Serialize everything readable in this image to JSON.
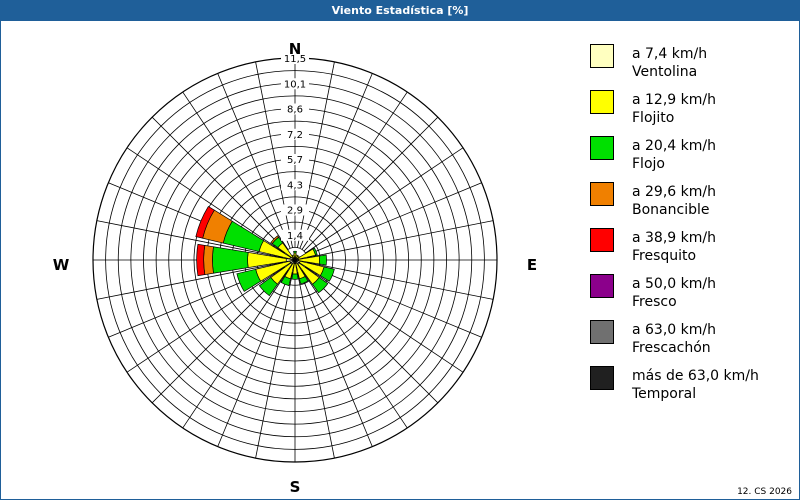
{
  "window": {
    "title": "Viento Estadística [%]"
  },
  "footer": {
    "text": "12. CS 2026"
  },
  "colors": {
    "title_bg": "#1f5f99",
    "bins": [
      "#ffffc0",
      "#ffff00",
      "#00e000",
      "#f08000",
      "#ff0000",
      "#8b008b",
      "#707070",
      "#202020"
    ]
  },
  "chart_data": {
    "type": "polar-bar",
    "title": "Viento Estadística [%]",
    "directions": [
      "N",
      "NNE",
      "NE",
      "ENE",
      "E",
      "ESE",
      "SE",
      "SSE",
      "S",
      "SSW",
      "SW",
      "WSW",
      "W",
      "WNW",
      "NW",
      "NNW"
    ],
    "cardinal_labels": {
      "N": "N",
      "E": "E",
      "S": "S",
      "W": "W"
    },
    "radial_ticks": [
      "1,4",
      "2,9",
      "4,3",
      "5,7",
      "7,2",
      "8,6",
      "10,1",
      "11,5"
    ],
    "rmax": 11.5,
    "stacking": "cumulative",
    "series": [
      {
        "name": "a 7,4 km/h Ventolina",
        "values": [
          0.1,
          0.1,
          0.1,
          0.2,
          0.2,
          0.3,
          0.3,
          0.2,
          0.2,
          0.2,
          0.3,
          0.3,
          0.5,
          0.3,
          0.2,
          0.1
        ]
      },
      {
        "name": "a 12,9 km/h Flojito",
        "values": [
          0.3,
          0.2,
          0.2,
          1.0,
          1.2,
          1.4,
          1.4,
          0.9,
          0.6,
          0.9,
          1.4,
          2.0,
          2.2,
          1.8,
          1.0,
          0.2
        ]
      },
      {
        "name": "a 20,4 km/h Flojo",
        "values": [
          0.1,
          0.0,
          0.0,
          0.1,
          0.4,
          0.6,
          0.6,
          0.3,
          0.3,
          0.4,
          0.8,
          1.1,
          2.0,
          2.1,
          0.4,
          0.0
        ]
      },
      {
        "name": "a 29,6 km/h Bonancible",
        "values": [
          0.0,
          0.0,
          0.0,
          0.0,
          0.0,
          0.0,
          0.0,
          0.0,
          0.0,
          0.0,
          0.0,
          0.0,
          0.5,
          1.2,
          0.1,
          0.0
        ]
      },
      {
        "name": "a 38,9 km/h Fresquito",
        "values": [
          0.0,
          0.0,
          0.0,
          0.0,
          0.0,
          0.0,
          0.0,
          0.0,
          0.0,
          0.0,
          0.0,
          0.0,
          0.4,
          0.4,
          0.0,
          0.0
        ]
      },
      {
        "name": "a 50,0 km/h Fresco",
        "values": [
          0,
          0,
          0,
          0,
          0,
          0,
          0,
          0,
          0,
          0,
          0,
          0,
          0,
          0,
          0,
          0
        ]
      },
      {
        "name": "a 63,0 km/h Frescachón",
        "values": [
          0,
          0,
          0,
          0,
          0,
          0,
          0,
          0,
          0,
          0,
          0,
          0,
          0,
          0,
          0,
          0
        ]
      },
      {
        "name": "más de 63,0 km/h Temporal",
        "values": [
          0,
          0,
          0,
          0,
          0,
          0,
          0,
          0,
          0,
          0,
          0,
          0,
          0,
          0,
          0,
          0
        ]
      }
    ],
    "grid": true,
    "legend_position": "right"
  },
  "legend": {
    "items": [
      {
        "range": "a 7,4 km/h",
        "name": "Ventolina"
      },
      {
        "range": "a 12,9 km/h",
        "name": "Flojito"
      },
      {
        "range": "a 20,4 km/h",
        "name": "Flojo"
      },
      {
        "range": "a 29,6 km/h",
        "name": "Bonancible"
      },
      {
        "range": "a 38,9 km/h",
        "name": "Fresquito"
      },
      {
        "range": "a 50,0 km/h",
        "name": "Fresco"
      },
      {
        "range": "a 63,0 km/h",
        "name": "Frescachón"
      },
      {
        "range": "más de 63,0 km/h",
        "name": "Temporal"
      }
    ]
  }
}
